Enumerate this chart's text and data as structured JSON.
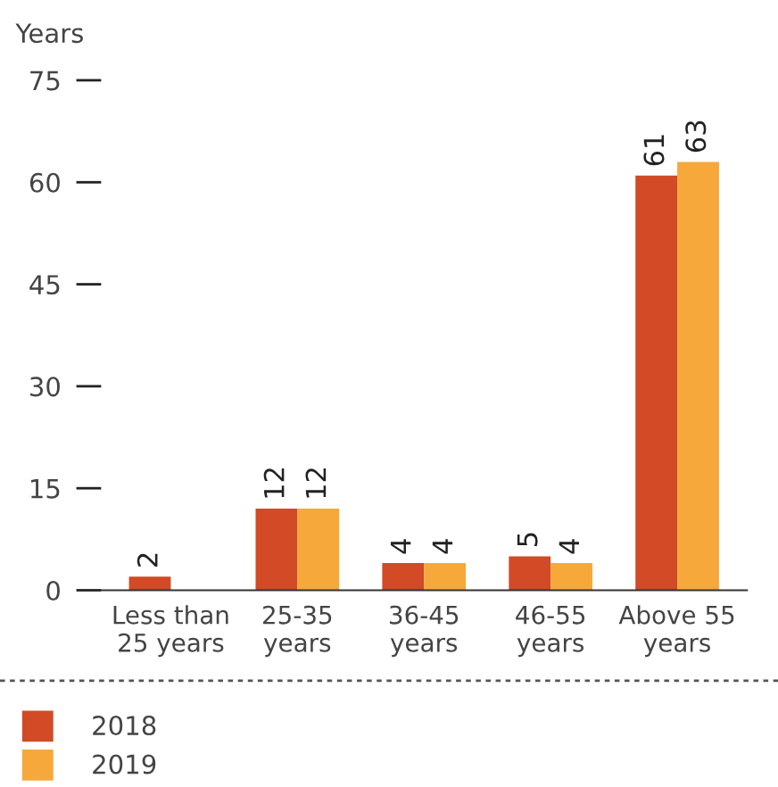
{
  "chart_data": {
    "type": "bar",
    "ylabel": "Years",
    "categories": [
      "Less than\n25 years",
      "25-35\nyears",
      "36-45\nyears",
      "46-55\nyears",
      "Above 55\nyears"
    ],
    "series": [
      {
        "name": "2018",
        "color": "#d24a26",
        "values": [
          2,
          12,
          4,
          5,
          61
        ]
      },
      {
        "name": "2019",
        "color": "#f7a83b",
        "values": [
          null,
          12,
          4,
          4,
          63
        ]
      }
    ],
    "ylim": [
      0,
      75
    ],
    "yticks": [
      0,
      15,
      30,
      45,
      60,
      75
    ],
    "data_labels": true,
    "grid": false,
    "legend": "bottom left"
  }
}
